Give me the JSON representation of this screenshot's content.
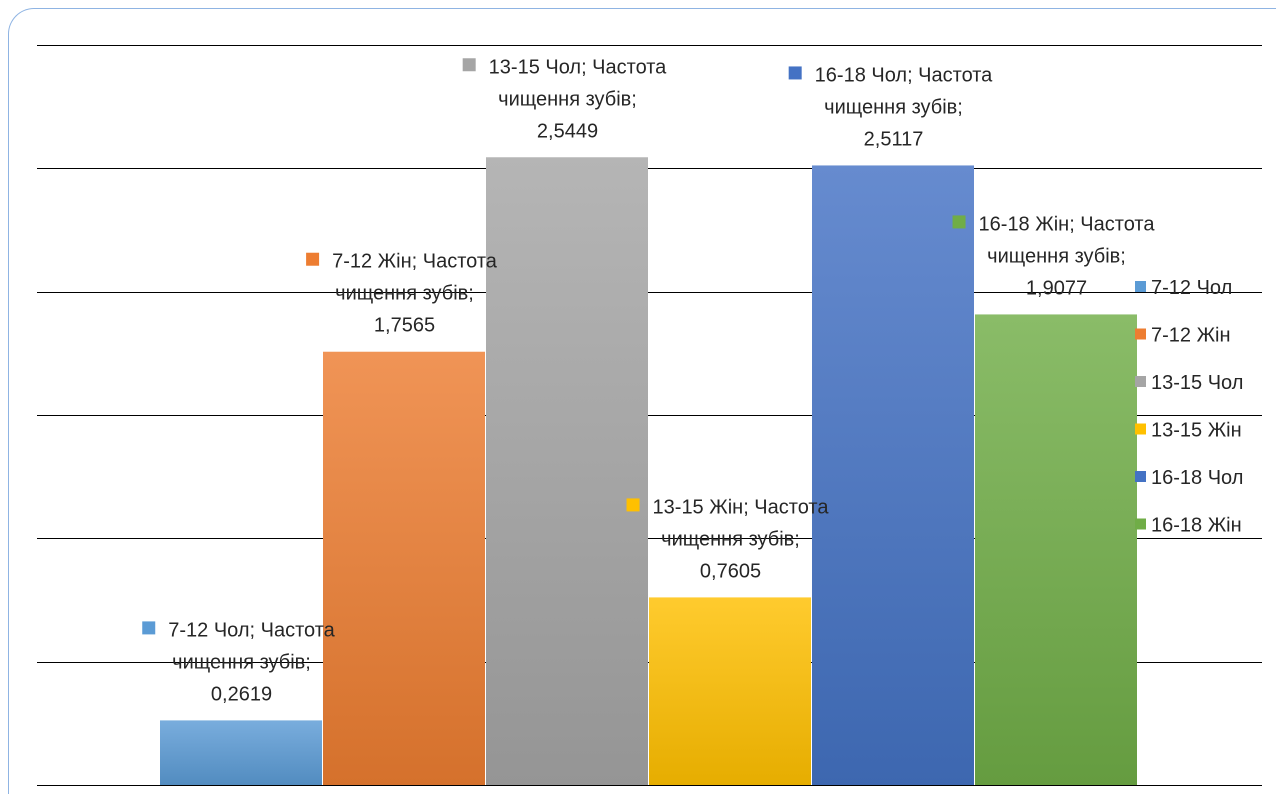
{
  "chart_data": {
    "type": "bar",
    "ylim": [
      0,
      3
    ],
    "grid": true,
    "legend_position": "right",
    "label_text": "Частота чищення зубів",
    "series": [
      {
        "name": "7-12 Чол",
        "value": 0.2619,
        "value_label": "0,2619",
        "color": "#5b9bd5"
      },
      {
        "name": "7-12 Жін",
        "value": 1.7565,
        "value_label": "1,7565",
        "color": "#ed7d31"
      },
      {
        "name": "13-15 Чол",
        "value": 2.5449,
        "value_label": "2,5449",
        "color": "#a5a5a5"
      },
      {
        "name": "13-15 Жін",
        "value": 0.7605,
        "value_label": "0,7605",
        "color": "#ffc000"
      },
      {
        "name": "16-18 Чол",
        "value": 2.5117,
        "value_label": "2,5117",
        "color": "#4472c4"
      },
      {
        "name": "16-18 Жін",
        "value": 1.9077,
        "value_label": "1,9077",
        "color": "#70ad47"
      }
    ]
  }
}
